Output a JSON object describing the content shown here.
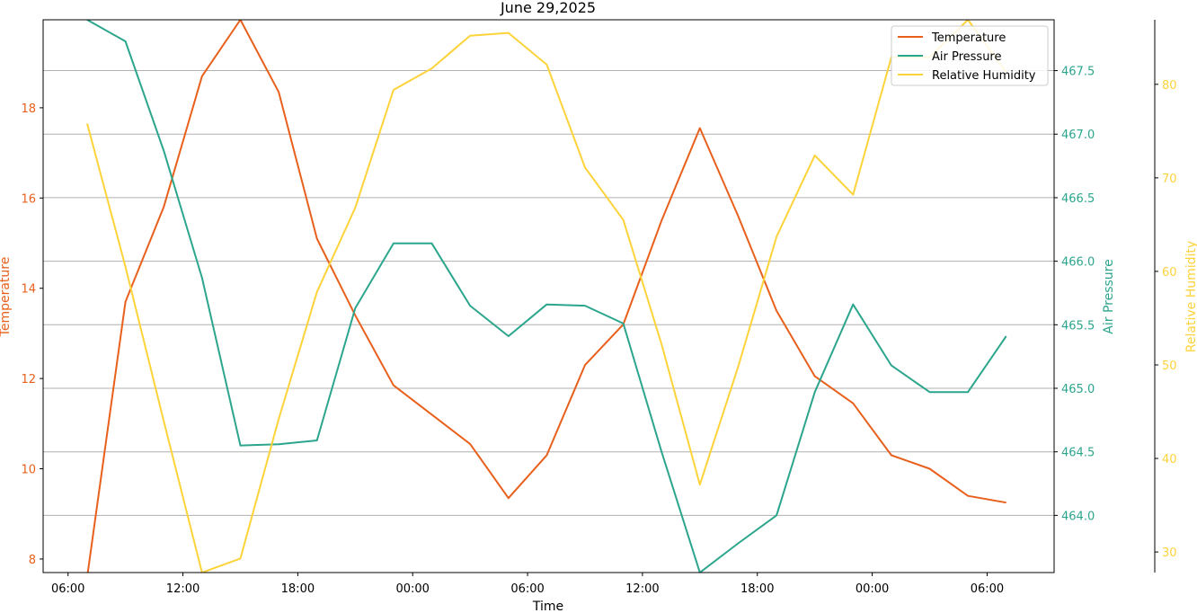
{
  "colors": {
    "temperature": "#e8601c",
    "pressure": "#2ca58d",
    "humidity": "#fdd33a",
    "grid": "#b0b0b0",
    "axis": "#000000"
  },
  "chart_data": {
    "type": "line",
    "title": "June 29,2025",
    "xlabel": "Time",
    "x_ticks": [
      "06:00",
      "12:00",
      "18:00",
      "00:00",
      "06:00",
      "12:00",
      "18:00",
      "00:00",
      "06:00"
    ],
    "x": [
      "07:00",
      "09:00",
      "11:00",
      "13:00",
      "15:00",
      "17:00",
      "19:00",
      "21:00",
      "23:00",
      "01:00",
      "03:00",
      "05:00",
      "07:00",
      "09:00",
      "11:00",
      "13:00",
      "15:00",
      "17:00",
      "19:00",
      "21:00",
      "23:00",
      "01:00",
      "03:00",
      "05:00",
      "07:00"
    ],
    "x_hours": [
      7,
      9,
      11,
      13,
      15,
      17,
      19,
      21,
      23,
      25,
      27,
      29,
      31,
      33,
      35,
      37,
      39,
      41,
      43,
      45,
      47,
      49,
      51,
      53,
      55
    ],
    "xlim_hours": [
      4.7,
      57.5
    ],
    "x_tick_hours": [
      6,
      12,
      18,
      24,
      30,
      36,
      42,
      48,
      54
    ],
    "grid": "horizontal lines at Air Pressure ticks",
    "legend_position": "top-right",
    "series": [
      {
        "name": "Temperature",
        "axis": "left",
        "ylabel": "Temperature",
        "ylim": [
          7.7,
          19.95
        ],
        "ticks": [
          8,
          10,
          12,
          14,
          16,
          18
        ],
        "values": [
          7.6,
          13.7,
          15.8,
          18.7,
          19.95,
          18.35,
          15.1,
          13.4,
          11.85,
          11.2,
          10.55,
          9.35,
          10.3,
          12.3,
          13.2,
          15.5,
          17.55,
          15.6,
          13.5,
          12.05,
          11.45,
          10.3,
          10.0,
          9.4,
          9.25
        ]
      },
      {
        "name": "Air Pressure",
        "axis": "right",
        "ylabel": "Air Pressure",
        "ylim": [
          463.55,
          467.9
        ],
        "ticks": [
          464.0,
          464.5,
          465.0,
          465.5,
          466.0,
          466.5,
          467.0,
          467.5
        ],
        "tick_labels": [
          "464.0",
          "464.5",
          "465.0",
          "465.5",
          "466.0",
          "466.5",
          "467.0",
          "467.5"
        ],
        "values": [
          467.9,
          467.73,
          466.87,
          465.87,
          464.55,
          464.56,
          464.59,
          465.63,
          466.14,
          466.14,
          465.65,
          465.41,
          465.66,
          465.65,
          465.51,
          464.5,
          463.55,
          463.78,
          464.0,
          464.97,
          465.66,
          465.18,
          464.97,
          464.97,
          465.41
        ]
      },
      {
        "name": "Relative Humidity",
        "axis": "right-outer",
        "ylabel": "Relative Humidity",
        "ylim": [
          27.8,
          86.9
        ],
        "ticks": [
          30,
          40,
          50,
          60,
          70,
          80
        ],
        "values": [
          75.8,
          60.5,
          44.0,
          27.8,
          29.3,
          44.2,
          57.8,
          66.8,
          79.4,
          81.7,
          85.2,
          85.5,
          82.1,
          71.1,
          65.5,
          52.2,
          37.2,
          49.8,
          63.7,
          72.4,
          68.2,
          82.9,
          82.9,
          86.9,
          81.3
        ]
      }
    ]
  }
}
